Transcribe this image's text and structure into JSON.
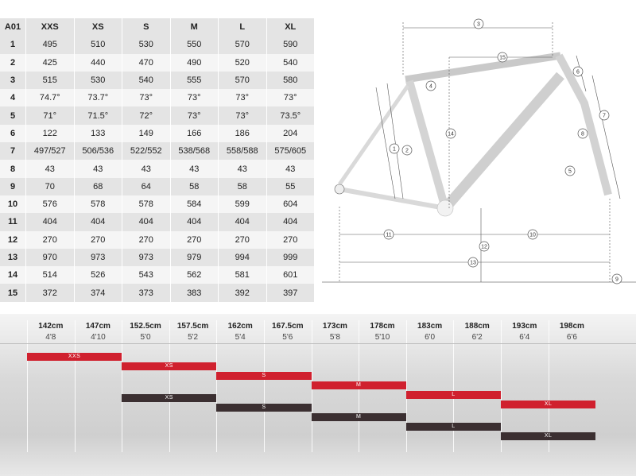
{
  "table": {
    "corner": "A01",
    "sizes": [
      "XXS",
      "XS",
      "S",
      "M",
      "L",
      "XL"
    ],
    "rows": [
      {
        "id": "1",
        "values": [
          "495",
          "510",
          "530",
          "550",
          "570",
          "590"
        ]
      },
      {
        "id": "2",
        "values": [
          "425",
          "440",
          "470",
          "490",
          "520",
          "540"
        ]
      },
      {
        "id": "3",
        "values": [
          "515",
          "530",
          "540",
          "555",
          "570",
          "580"
        ]
      },
      {
        "id": "4",
        "values": [
          "74.7°",
          "73.7°",
          "73°",
          "73°",
          "73°",
          "73°"
        ]
      },
      {
        "id": "5",
        "values": [
          "71°",
          "71.5°",
          "72°",
          "73°",
          "73°",
          "73.5°"
        ]
      },
      {
        "id": "6",
        "values": [
          "122",
          "133",
          "149",
          "166",
          "186",
          "204"
        ]
      },
      {
        "id": "7",
        "values": [
          "497/527",
          "506/536",
          "522/552",
          "538/568",
          "558/588",
          "575/605"
        ]
      },
      {
        "id": "8",
        "values": [
          "43",
          "43",
          "43",
          "43",
          "43",
          "43"
        ]
      },
      {
        "id": "9",
        "values": [
          "70",
          "68",
          "64",
          "58",
          "58",
          "55"
        ]
      },
      {
        "id": "10",
        "values": [
          "576",
          "578",
          "578",
          "584",
          "599",
          "604"
        ]
      },
      {
        "id": "11",
        "values": [
          "404",
          "404",
          "404",
          "404",
          "404",
          "404"
        ]
      },
      {
        "id": "12",
        "values": [
          "270",
          "270",
          "270",
          "270",
          "270",
          "270"
        ]
      },
      {
        "id": "13",
        "values": [
          "970",
          "973",
          "973",
          "979",
          "994",
          "999"
        ]
      },
      {
        "id": "14",
        "values": [
          "514",
          "526",
          "543",
          "562",
          "581",
          "601"
        ]
      },
      {
        "id": "15",
        "values": [
          "372",
          "374",
          "373",
          "383",
          "392",
          "397"
        ]
      }
    ]
  },
  "diagram": {
    "callouts": [
      "1",
      "2",
      "3",
      "4",
      "5",
      "6",
      "7",
      "8",
      "9",
      "10",
      "11",
      "12",
      "13",
      "14",
      "15"
    ]
  },
  "height_chart": {
    "columns": [
      {
        "cm": "142cm",
        "ft": "4'8"
      },
      {
        "cm": "147cm",
        "ft": "4'10"
      },
      {
        "cm": "152.5cm",
        "ft": "5'0"
      },
      {
        "cm": "157.5cm",
        "ft": "5'2"
      },
      {
        "cm": "162cm",
        "ft": "5'4"
      },
      {
        "cm": "167.5cm",
        "ft": "5'6"
      },
      {
        "cm": "173cm",
        "ft": "5'8"
      },
      {
        "cm": "178cm",
        "ft": "5'10"
      },
      {
        "cm": "183cm",
        "ft": "6'0"
      },
      {
        "cm": "188cm",
        "ft": "6'2"
      },
      {
        "cm": "193cm",
        "ft": "6'4"
      },
      {
        "cm": "198cm",
        "ft": "6'6"
      }
    ],
    "bars": [
      {
        "label": "XXS",
        "from_col": 0,
        "to_col": 2,
        "color": "#d0202e"
      },
      {
        "label": "XS",
        "from_col": 2,
        "to_col": 4,
        "color": "#d0202e"
      },
      {
        "label": "S",
        "from_col": 4,
        "to_col": 6,
        "color": "#d0202e"
      },
      {
        "label": "M",
        "from_col": 6,
        "to_col": 8,
        "color": "#d0202e"
      },
      {
        "label": "L",
        "from_col": 8,
        "to_col": 10,
        "color": "#d0202e"
      },
      {
        "label": "XL",
        "from_col": 10,
        "to_col": 12,
        "color": "#d0202e"
      },
      {
        "label": "XS",
        "from_col": 2,
        "to_col": 4,
        "color": "#3b2f31"
      },
      {
        "label": "S",
        "from_col": 4,
        "to_col": 6,
        "color": "#3b2f31"
      },
      {
        "label": "M",
        "from_col": 6,
        "to_col": 8,
        "color": "#3b2f31"
      },
      {
        "label": "L",
        "from_col": 8,
        "to_col": 10,
        "color": "#3b2f31"
      },
      {
        "label": "XL",
        "from_col": 10,
        "to_col": 12,
        "color": "#3b2f31"
      }
    ]
  }
}
